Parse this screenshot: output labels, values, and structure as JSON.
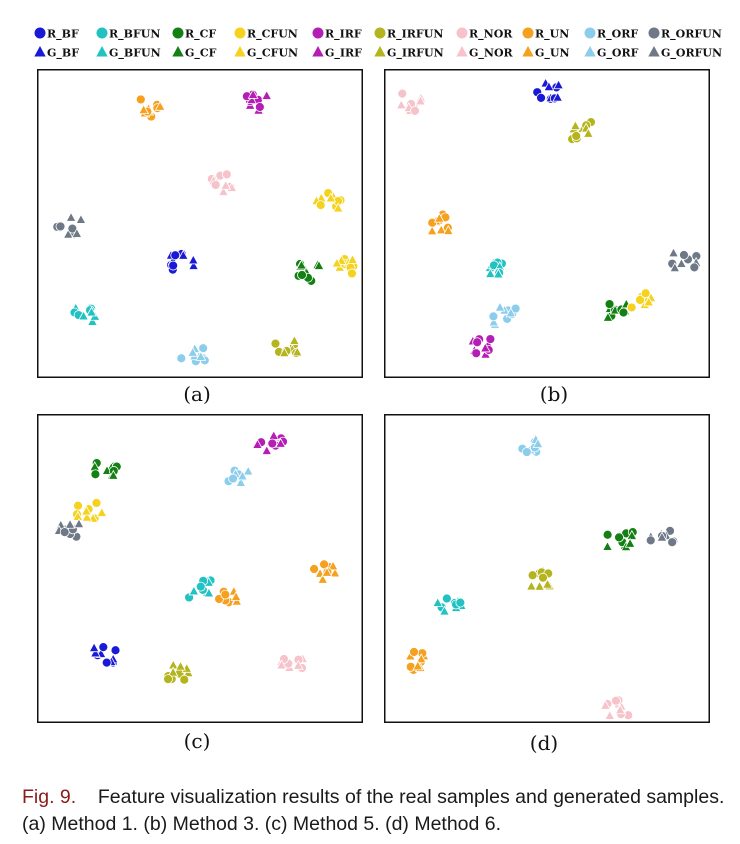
{
  "legend": {
    "colors": {
      "BF": "#1a1ad6",
      "BFUN": "#22c2c2",
      "CF": "#148014",
      "CFUN": "#f5d21e",
      "IRF": "#b41eb4",
      "IRFUN": "#b4b41e",
      "NOR": "#f7c3cb",
      "UN": "#f5a01e",
      "ORF": "#8ccdeb",
      "ORFUN": "#6e7887"
    },
    "classes": [
      "BF",
      "BFUN",
      "CF",
      "CFUN",
      "IRF",
      "IRFUN",
      "NOR",
      "UN",
      "ORF",
      "ORFUN"
    ],
    "real_labels": [
      "R_BF",
      "R_BFUN",
      "R_CF",
      "R_CFUN",
      "R_IRF",
      "R_IRFUN",
      "R_NOR",
      "R_UN",
      "R_ORF",
      "R_ORFUN"
    ],
    "gen_labels": [
      "G_BF",
      "G_BFUN",
      "G_CF",
      "G_CFUN",
      "G_IRF",
      "G_IRFUN",
      "G_NOR",
      "G_UN",
      "G_ORF",
      "G_ORFUN"
    ],
    "real_marker": "circle",
    "gen_marker": "triangle"
  },
  "panels": [
    {
      "label": "(a)"
    },
    {
      "label": "(b)"
    },
    {
      "label": "(c)"
    },
    {
      "label": "(d)"
    }
  ],
  "caption": {
    "fig_label": "Fig. 9.",
    "text": "Feature visualization results of the real samples and generated samples. (a) Method 1. (b) Method 3. (c) Method 5. (d) Method 6."
  },
  "chart_data": [
    {
      "type": "scatter",
      "title": "(a)",
      "xlim": [
        0,
        100
      ],
      "ylim": [
        0,
        100
      ],
      "axis_ticks": false,
      "clusters": [
        {
          "class": "UN",
          "x": 33,
          "y": 90
        },
        {
          "class": "IRF",
          "x": 68,
          "y": 92
        },
        {
          "class": "NOR",
          "x": 58,
          "y": 64
        },
        {
          "class": "ORFUN",
          "x": 7,
          "y": 49
        },
        {
          "class": "CFUN",
          "x": 92,
          "y": 58
        },
        {
          "class": "CF",
          "x": 86,
          "y": 33
        },
        {
          "class": "CFUN",
          "x": 98,
          "y": 35
        },
        {
          "class": "BF",
          "x": 44,
          "y": 37
        },
        {
          "class": "BFUN",
          "x": 13,
          "y": 18
        },
        {
          "class": "IRFUN",
          "x": 78,
          "y": 8
        },
        {
          "class": "ORF",
          "x": 48,
          "y": 5
        }
      ]
    },
    {
      "type": "scatter",
      "title": "(b)",
      "xlim": [
        0,
        100
      ],
      "ylim": [
        0,
        100
      ],
      "axis_ticks": false,
      "clusters": [
        {
          "class": "NOR",
          "x": 5,
          "y": 92
        },
        {
          "class": "BF",
          "x": 50,
          "y": 96
        },
        {
          "class": "IRFUN",
          "x": 62,
          "y": 82
        },
        {
          "class": "UN",
          "x": 14,
          "y": 50
        },
        {
          "class": "BFUN",
          "x": 32,
          "y": 34
        },
        {
          "class": "ORF",
          "x": 36,
          "y": 18
        },
        {
          "class": "IRF",
          "x": 30,
          "y": 7
        },
        {
          "class": "CF",
          "x": 72,
          "y": 20
        },
        {
          "class": "CFUN",
          "x": 80,
          "y": 24
        },
        {
          "class": "ORFUN",
          "x": 95,
          "y": 37
        }
      ]
    },
    {
      "type": "scatter",
      "title": "(c)",
      "xlim": [
        0,
        100
      ],
      "ylim": [
        0,
        100
      ],
      "axis_ticks": false,
      "clusters": [
        {
          "class": "IRF",
          "x": 73,
          "y": 93
        },
        {
          "class": "ORF",
          "x": 62,
          "y": 82
        },
        {
          "class": "CF",
          "x": 19,
          "y": 84
        },
        {
          "class": "CFUN",
          "x": 14,
          "y": 70
        },
        {
          "class": "ORFUN",
          "x": 7,
          "y": 63
        },
        {
          "class": "UN",
          "x": 90,
          "y": 49
        },
        {
          "class": "BFUN",
          "x": 50,
          "y": 43
        },
        {
          "class": "UN",
          "x": 58,
          "y": 41
        },
        {
          "class": "BF",
          "x": 19,
          "y": 20
        },
        {
          "class": "IRFUN",
          "x": 42,
          "y": 14
        },
        {
          "class": "NOR",
          "x": 80,
          "y": 16
        }
      ]
    },
    {
      "type": "scatter",
      "title": "(d)",
      "xlim": [
        0,
        100
      ],
      "ylim": [
        0,
        100
      ],
      "axis_ticks": false,
      "clusters": [
        {
          "class": "ORF",
          "x": 44,
          "y": 93
        },
        {
          "class": "CF",
          "x": 74,
          "y": 60
        },
        {
          "class": "ORFUN",
          "x": 88,
          "y": 60
        },
        {
          "class": "IRFUN",
          "x": 48,
          "y": 46
        },
        {
          "class": "BFUN",
          "x": 18,
          "y": 38
        },
        {
          "class": "UN",
          "x": 7,
          "y": 18
        },
        {
          "class": "NOR",
          "x": 73,
          "y": 2
        }
      ]
    }
  ]
}
